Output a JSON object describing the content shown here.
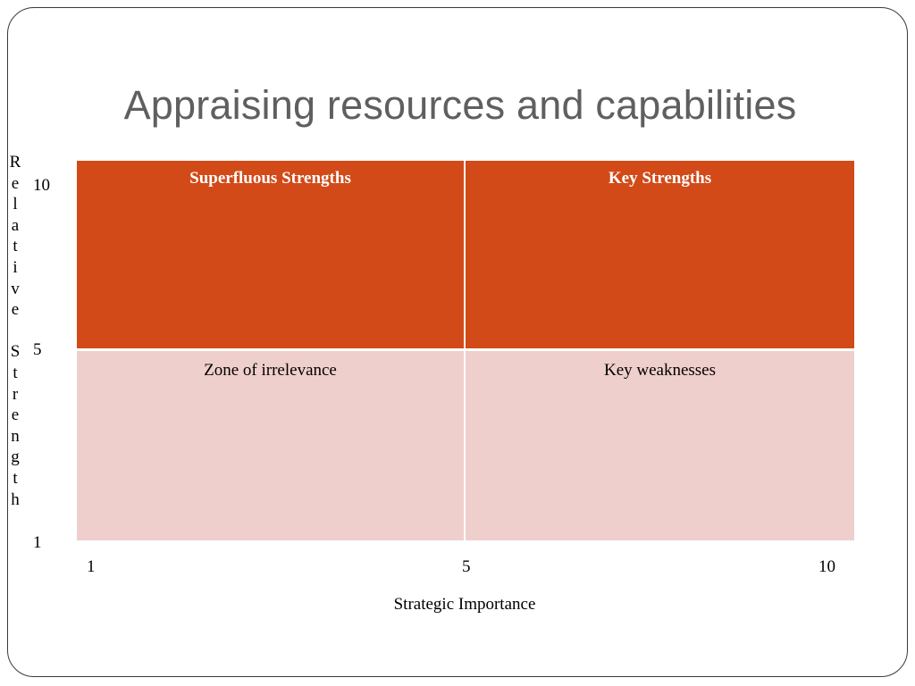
{
  "slide": {
    "title": "Appraising resources and capabilities"
  },
  "matrix": {
    "y_axis_label_letters": [
      "R",
      "e",
      "l",
      "a",
      "t",
      "i",
      "v",
      "e",
      " ",
      "S",
      "t",
      "r",
      "e",
      "n",
      "g",
      "t",
      "h"
    ],
    "y_ticks": [
      "10",
      "5",
      "1"
    ],
    "x_ticks": [
      "1",
      "5",
      "10"
    ],
    "x_axis_label": "Strategic Importance",
    "quadrants": {
      "top_left": "Superfluous Strengths",
      "top_right": "Key Strengths",
      "bottom_left": "Zone of irrelevance",
      "bottom_right": "Key weaknesses"
    },
    "colors": {
      "top_row": "#d14a18",
      "bottom_row": "#efcfcc"
    }
  }
}
